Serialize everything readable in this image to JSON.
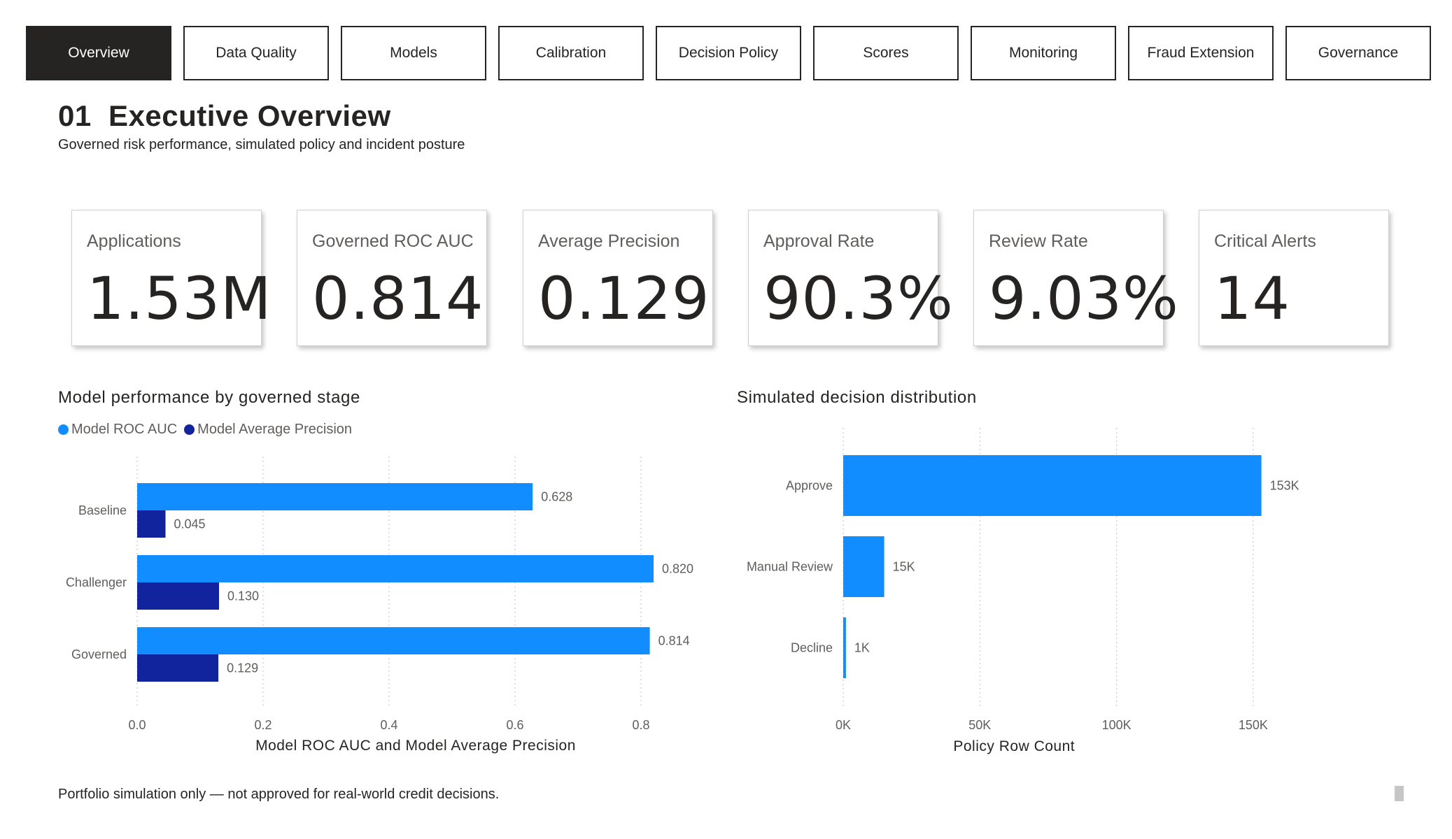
{
  "tabs": [
    {
      "label": "Overview",
      "active": true
    },
    {
      "label": "Data Quality",
      "active": false
    },
    {
      "label": "Models",
      "active": false
    },
    {
      "label": "Calibration",
      "active": false
    },
    {
      "label": "Decision Policy",
      "active": false
    },
    {
      "label": "Scores",
      "active": false
    },
    {
      "label": "Monitoring",
      "active": false
    },
    {
      "label": "Fraud Extension",
      "active": false
    },
    {
      "label": "Governance",
      "active": false
    }
  ],
  "page": {
    "title": "01  Executive Overview",
    "subtitle": "Governed risk performance, simulated policy and incident posture"
  },
  "kpis": [
    {
      "label": "Applications",
      "value": "1.53M"
    },
    {
      "label": "Governed ROC AUC",
      "value": "0.814"
    },
    {
      "label": "Average Precision",
      "value": "0.129"
    },
    {
      "label": "Approval Rate",
      "value": "90.3%"
    },
    {
      "label": "Review Rate",
      "value": "9.03%"
    },
    {
      "label": "Critical Alerts",
      "value": "14"
    }
  ],
  "colors": {
    "series_light": "#118DFF",
    "series_dark": "#12239E",
    "gridline": "#d0d0d0",
    "active_tab_bg": "#252423"
  },
  "chart_data": [
    {
      "type": "bar",
      "orientation": "horizontal",
      "title": "Model performance by governed stage",
      "categories": [
        "Baseline",
        "Challenger",
        "Governed"
      ],
      "series": [
        {
          "name": "Model ROC AUC",
          "values": [
            0.628,
            0.82,
            0.814
          ],
          "labels": [
            "0.628",
            "0.820",
            "0.814"
          ],
          "color": "#118DFF"
        },
        {
          "name": "Model Average Precision",
          "values": [
            0.045,
            0.13,
            0.129
          ],
          "labels": [
            "0.045",
            "0.130",
            "0.129"
          ],
          "color": "#12239E"
        }
      ],
      "xlabel": "Model ROC AUC and Model Average Precision",
      "ylabel": "",
      "xlim": [
        0,
        0.9
      ],
      "xticks": [
        0.0,
        0.2,
        0.4,
        0.6,
        0.8
      ],
      "xtick_labels": [
        "0.0",
        "0.2",
        "0.4",
        "0.6",
        "0.8"
      ],
      "grid": "vertical dotted",
      "legend": "top-left"
    },
    {
      "type": "bar",
      "orientation": "horizontal",
      "title": "Simulated decision distribution",
      "categories": [
        "Approve",
        "Manual Review",
        "Decline"
      ],
      "series": [
        {
          "name": "Policy Row Count",
          "values": [
            153000,
            15000,
            1000
          ],
          "labels": [
            "153K",
            "15K",
            "1K"
          ],
          "color": "#118DFF"
        }
      ],
      "xlabel": "Policy Row Count",
      "ylabel": "",
      "xlim": [
        0,
        165000
      ],
      "xticks": [
        0,
        50000,
        100000,
        150000
      ],
      "xtick_labels": [
        "0K",
        "50K",
        "100K",
        "150K"
      ],
      "grid": "vertical dotted",
      "legend": "none"
    }
  ],
  "footer": {
    "note": "Portfolio simulation only — not approved for real-world credit decisions."
  }
}
